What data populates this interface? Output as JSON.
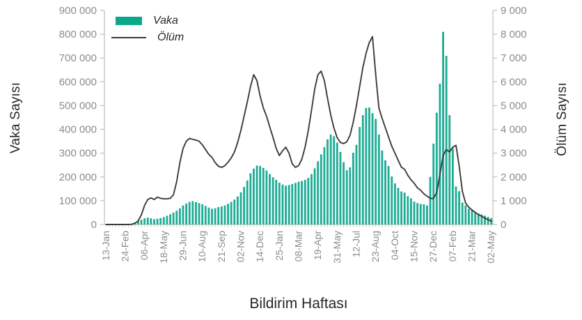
{
  "figure": {
    "y_left_title": "Vaka Sayısı",
    "y_right_title": "Ölüm Sayısı",
    "x_title": "Bildirim Haftası"
  },
  "colors": {
    "bar": "#1fac94",
    "bar_legend": "#0aa88b",
    "line": "#3a3a3a",
    "axis_line": "#bfbfbf",
    "tick_mark": "#c6c6c6",
    "tick_label": "#8c8c8c",
    "axis_title_text": "#262626"
  },
  "chart_data": {
    "type": "bar",
    "subtype": "dual-axis bar + line, weekly epidemic curve",
    "weeks": 121,
    "x_tick_every": 6,
    "x_tick_labels": [
      "13-Jan",
      "24-Feb",
      "06-Apr",
      "18-May",
      "29-Jun",
      "10-Aug",
      "21-Sep",
      "02-Nov",
      "14-Dec",
      "25-Jan",
      "08-Mar",
      "19-Apr",
      "31-May",
      "12-Jul",
      "23-Aug",
      "04-Oct",
      "15-Nov",
      "27-Dec",
      "07-Feb",
      "21-Mar",
      "02-May"
    ],
    "xlabel": "Bildirim Haftası",
    "legend_position": "top-left inside plot",
    "grid": false,
    "left_axis": {
      "title": "Vaka Sayısı",
      "min": 0,
      "max": 900000,
      "step": 100000,
      "tick_labels": [
        "0",
        "100 000",
        "200 000",
        "300 000",
        "400 000",
        "500 000",
        "600 000",
        "700 000",
        "800 000",
        "900 000"
      ]
    },
    "right_axis": {
      "title": "Ölüm Sayısı",
      "min": 0,
      "max": 9000,
      "step": 1000,
      "tick_labels": [
        "0",
        "1 000",
        "2 000",
        "3 000",
        "4 000",
        "5 000",
        "6 000",
        "7 000",
        "8 000",
        "9 000"
      ]
    },
    "series": [
      {
        "name": "Vaka",
        "type": "bar",
        "axis": "left",
        "values": [
          0,
          0,
          0,
          0,
          0,
          0,
          0,
          1000,
          4000,
          9000,
          15000,
          20000,
          26000,
          29000,
          26000,
          22000,
          24000,
          27000,
          31000,
          37000,
          43000,
          50000,
          58000,
          68000,
          80000,
          88000,
          95000,
          98000,
          94000,
          90000,
          85000,
          78000,
          71000,
          66000,
          68000,
          73000,
          76000,
          80000,
          87000,
          95000,
          105000,
          118000,
          135000,
          158000,
          185000,
          215000,
          235000,
          248000,
          246000,
          238000,
          227000,
          212000,
          199000,
          188000,
          176000,
          168000,
          163000,
          166000,
          170000,
          175000,
          180000,
          183000,
          188000,
          196000,
          212000,
          236000,
          266000,
          295000,
          325000,
          358000,
          378000,
          371000,
          344000,
          305000,
          262000,
          228000,
          240000,
          302000,
          335000,
          410000,
          460000,
          490000,
          492000,
          468000,
          444000,
          378000,
          311000,
          270000,
          246000,
          202000,
          173000,
          154000,
          139000,
          134000,
          119000,
          110000,
          96000,
          90000,
          86000,
          85000,
          80000,
          200000,
          340000,
          470000,
          592000,
          810000,
          709000,
          460000,
          320000,
          160000,
          140000,
          92000,
          80000,
          66000,
          61000,
          52000,
          46000,
          42000,
          37000,
          32000,
          27000
        ]
      },
      {
        "name": "Ölüm",
        "type": "line",
        "axis": "right",
        "values": [
          0,
          0,
          0,
          0,
          0,
          0,
          0,
          0,
          10,
          50,
          150,
          400,
          800,
          1050,
          1120,
          1050,
          1150,
          1100,
          1080,
          1080,
          1100,
          1250,
          1800,
          2600,
          3200,
          3500,
          3620,
          3580,
          3550,
          3500,
          3350,
          3150,
          2950,
          2820,
          2600,
          2450,
          2400,
          2470,
          2620,
          2800,
          3050,
          3450,
          3950,
          4550,
          5150,
          5800,
          6300,
          6050,
          5400,
          4900,
          4550,
          4100,
          3670,
          3200,
          2900,
          3100,
          3250,
          3000,
          2550,
          2400,
          2480,
          2750,
          3250,
          3950,
          4800,
          5700,
          6300,
          6450,
          6050,
          5300,
          4600,
          4050,
          3650,
          3450,
          3400,
          3480,
          3750,
          4300,
          5000,
          5800,
          6600,
          7200,
          7650,
          7900,
          6300,
          4900,
          4460,
          4070,
          3680,
          3290,
          3000,
          2700,
          2410,
          2320,
          2070,
          1880,
          1730,
          1540,
          1440,
          1290,
          1190,
          1100,
          1090,
          1350,
          2100,
          2900,
          3150,
          3050,
          3250,
          3330,
          2460,
          1390,
          900,
          725,
          610,
          510,
          415,
          345,
          270,
          200,
          140
        ]
      }
    ]
  }
}
